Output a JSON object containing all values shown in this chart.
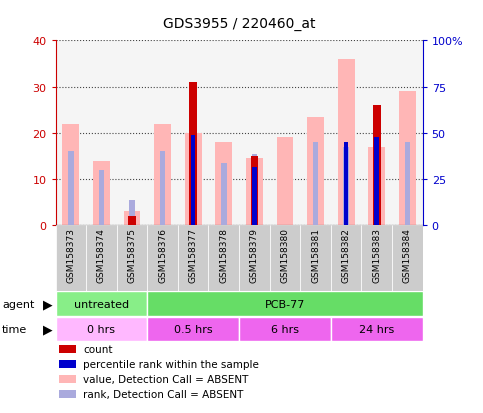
{
  "title": "GDS3955 / 220460_at",
  "samples": [
    "GSM158373",
    "GSM158374",
    "GSM158375",
    "GSM158376",
    "GSM158377",
    "GSM158378",
    "GSM158379",
    "GSM158380",
    "GSM158381",
    "GSM158382",
    "GSM158383",
    "GSM158384"
  ],
  "count_values": [
    0,
    0,
    2,
    0,
    31,
    0,
    15,
    0,
    0,
    0,
    26,
    0
  ],
  "percentile_rank": [
    0,
    0,
    0,
    0,
    19.5,
    0,
    12.5,
    0,
    0,
    18,
    19,
    0
  ],
  "pink_values": [
    22,
    14,
    3,
    22,
    20,
    18,
    14.5,
    19,
    23.5,
    36,
    17,
    29
  ],
  "light_blue_values": [
    16,
    12,
    5.5,
    16,
    0,
    13.5,
    15.5,
    0,
    18,
    17,
    17.5,
    18
  ],
  "ylim_left": [
    0,
    40
  ],
  "ylim_right": [
    0,
    100
  ],
  "yticks_left": [
    0,
    10,
    20,
    30,
    40
  ],
  "yticks_right": [
    0,
    25,
    50,
    75,
    100
  ],
  "ytick_labels_right": [
    "0",
    "25",
    "50",
    "75",
    "100%"
  ],
  "agent_untreated": {
    "label": "untreated",
    "start": 0,
    "end": 3,
    "color": "#88EE88"
  },
  "agent_pcb": {
    "label": "PCB-77",
    "start": 3,
    "end": 12,
    "color": "#66DD66"
  },
  "time_groups": [
    {
      "label": "0 hrs",
      "start": 0,
      "end": 3,
      "color": "#FFB8FF"
    },
    {
      "label": "0.5 hrs",
      "start": 3,
      "end": 6,
      "color": "#EE66EE"
    },
    {
      "label": "6 hrs",
      "start": 6,
      "end": 9,
      "color": "#EE66EE"
    },
    {
      "label": "24 hrs",
      "start": 9,
      "end": 12,
      "color": "#EE66EE"
    }
  ],
  "legend_items": [
    {
      "label": "count",
      "color": "#cc0000"
    },
    {
      "label": "percentile rank within the sample",
      "color": "#0000cc"
    },
    {
      "label": "value, Detection Call = ABSENT",
      "color": "#ffb6b6"
    },
    {
      "label": "rank, Detection Call = ABSENT",
      "color": "#aaaadd"
    }
  ],
  "background_color": "#ffffff",
  "left_tick_color": "#cc0000",
  "right_tick_color": "#0000cc",
  "xtick_bg": "#cccccc"
}
